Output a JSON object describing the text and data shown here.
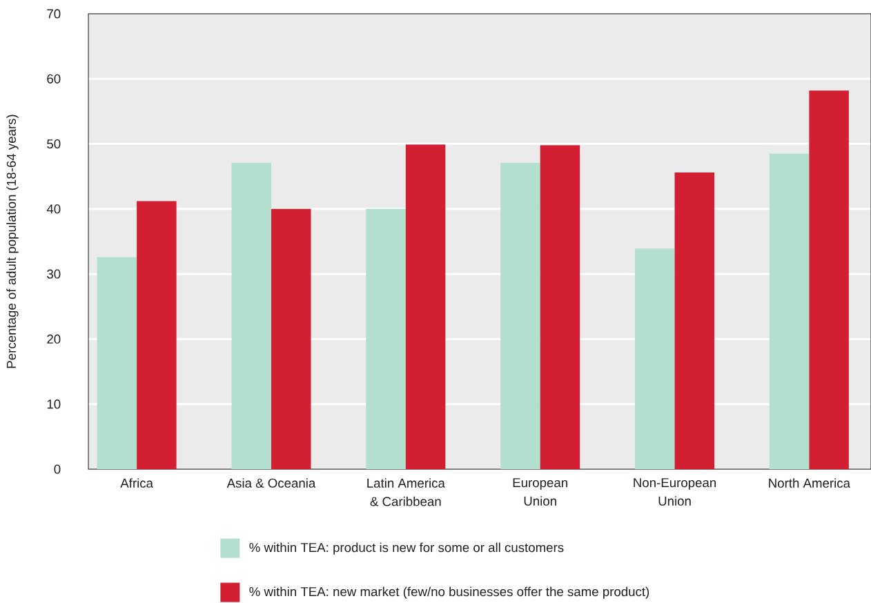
{
  "chart_data": {
    "type": "bar",
    "ylabel": "Percentage of adult population (18-64 years)",
    "categories": [
      "Africa",
      "Asia & Oceania",
      "Latin America & Caribbean",
      "European Union",
      "Non-European Union",
      "North America"
    ],
    "series": [
      {
        "name": "% within TEA: product is new for some or all customers",
        "color": "#b3dfce",
        "values": [
          32.6,
          47.1,
          40.0,
          47.1,
          33.9,
          48.5
        ]
      },
      {
        "name": "% within TEA: new market (few/no businesses offer the same product)",
        "color": "#d31f32",
        "values": [
          41.2,
          40.0,
          49.9,
          49.8,
          45.6,
          58.2
        ]
      }
    ],
    "ylim": [
      0,
      70
    ],
    "yticks": [
      0,
      10,
      20,
      30,
      40,
      50,
      60,
      70
    ],
    "grid": "y",
    "legend": "bottom"
  }
}
